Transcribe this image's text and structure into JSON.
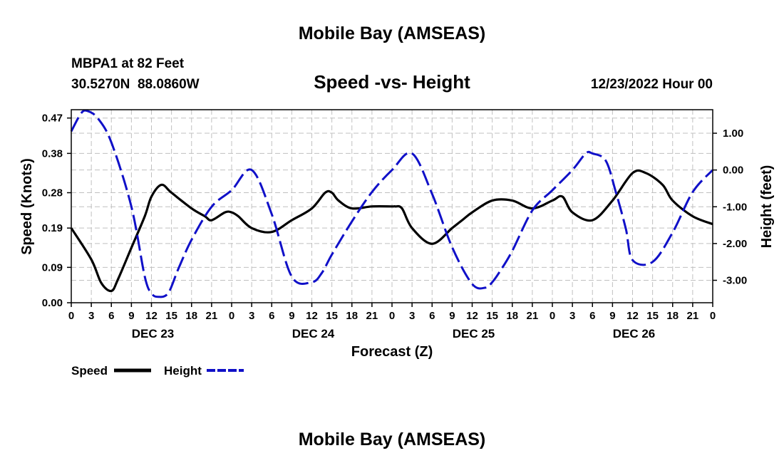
{
  "page": {
    "title": "Mobile Bay (AMSEAS)",
    "footer_title": "Mobile Bay (AMSEAS)",
    "station": "MBPA1 at 82 Feet",
    "coords": "30.5270N  88.0860W",
    "datetime": "12/23/2022 Hour 00"
  },
  "colors": {
    "speed": "#000000",
    "height": "#1010c8",
    "grid": "#c0c0c0"
  },
  "chart_data": {
    "type": "line",
    "title": "Speed -vs- Height",
    "xlabel": "Forecast (Z)",
    "ylabel": "Speed (Knots)",
    "y2label": "Height (feet)",
    "xlim": [
      0,
      96
    ],
    "ylim": [
      0,
      0.4912
    ],
    "y2lim": [
      -3.61,
      1.64
    ],
    "x_tick_values": [
      0,
      3,
      6,
      9,
      12,
      15,
      18,
      21,
      24,
      27,
      30,
      33,
      36,
      39,
      42,
      45,
      48,
      51,
      54,
      57,
      60,
      63,
      66,
      69,
      72,
      75,
      78,
      81,
      84,
      87,
      90,
      93,
      96
    ],
    "x_tick_labels": [
      "0",
      "3",
      "6",
      "9",
      "12",
      "15",
      "18",
      "21",
      "0",
      "3",
      "6",
      "9",
      "12",
      "15",
      "18",
      "21",
      "0",
      "3",
      "6",
      "9",
      "12",
      "15",
      "18",
      "21",
      "0",
      "3",
      "6",
      "9",
      "12",
      "15",
      "18",
      "21",
      "0"
    ],
    "day_labels": [
      {
        "label": "DEC 23",
        "x": 12
      },
      {
        "label": "DEC 24",
        "x": 36
      },
      {
        "label": "DEC 25",
        "x": 60
      },
      {
        "label": "DEC 26",
        "x": 84
      }
    ],
    "y_ticks": [
      0.0,
      0.09,
      0.19,
      0.28,
      0.38,
      0.47
    ],
    "y_tick_labels": [
      "0.00",
      "0.09",
      "0.19",
      "0.28",
      "0.38",
      "0.47"
    ],
    "y2_ticks": [
      1.0,
      0.0,
      -1.0,
      -2.0,
      -3.0
    ],
    "y2_tick_labels": [
      "1.00",
      "0.00",
      "-1.00",
      "-2.00",
      "-3.00"
    ],
    "grid": true,
    "legend": [
      {
        "name": "Speed",
        "style": "solid"
      },
      {
        "name": "Height",
        "style": "dashed"
      }
    ],
    "series": [
      {
        "name": "Speed",
        "axis": "left",
        "x": [
          0,
          3,
          4.5,
          6,
          7,
          9,
          11,
          12,
          13.5,
          15,
          18,
          20,
          21,
          23,
          24,
          25,
          27,
          30,
          33,
          36,
          38,
          39,
          40,
          42,
          45,
          48,
          48.5,
          49.5,
          51,
          54,
          57,
          58.5,
          60,
          63,
          66,
          69,
          72,
          73.5,
          75,
          78,
          81,
          84,
          86,
          88.5,
          90,
          93,
          96
        ],
        "y": [
          0.19,
          0.11,
          0.05,
          0.03,
          0.06,
          0.14,
          0.22,
          0.27,
          0.3,
          0.28,
          0.24,
          0.22,
          0.21,
          0.23,
          0.23,
          0.22,
          0.19,
          0.18,
          0.21,
          0.24,
          0.28,
          0.28,
          0.26,
          0.24,
          0.245,
          0.245,
          0.245,
          0.24,
          0.19,
          0.15,
          0.19,
          0.21,
          0.23,
          0.26,
          0.26,
          0.24,
          0.26,
          0.27,
          0.23,
          0.21,
          0.26,
          0.33,
          0.33,
          0.3,
          0.26,
          0.22,
          0.2
        ]
      },
      {
        "name": "Height",
        "axis": "right",
        "x": [
          0,
          1.5,
          2.5,
          4,
          6,
          9,
          11,
          12,
          13,
          14.5,
          16,
          18,
          21,
          24,
          27,
          30,
          33,
          36,
          37.5,
          39,
          42,
          45,
          48,
          51,
          54,
          57,
          60,
          62,
          63,
          64,
          66,
          69,
          72,
          75,
          77,
          78,
          80,
          81.5,
          83,
          84,
          87,
          90,
          93,
          96
        ],
        "y": [
          1.05,
          1.55,
          1.6,
          1.4,
          0.75,
          -1.0,
          -2.9,
          -3.35,
          -3.45,
          -3.35,
          -2.7,
          -1.9,
          -1.0,
          -0.55,
          0.0,
          -1.2,
          -2.9,
          -3.05,
          -2.8,
          -2.3,
          -1.4,
          -0.6,
          0.0,
          0.45,
          -0.65,
          -2.1,
          -3.1,
          -3.2,
          -3.05,
          -2.8,
          -2.2,
          -1.1,
          -0.55,
          0.0,
          0.45,
          0.45,
          0.25,
          -0.6,
          -1.6,
          -2.45,
          -2.5,
          -1.7,
          -0.6,
          0.0
        ]
      }
    ]
  }
}
